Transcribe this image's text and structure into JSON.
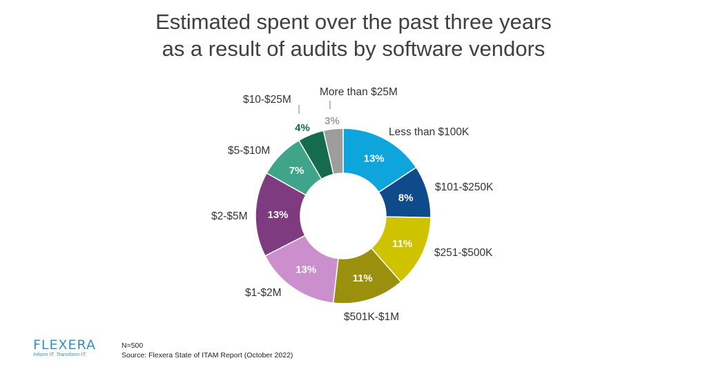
{
  "title_line1": "Estimated spent over the past three years",
  "title_line2": "as a result of audits by software vendors",
  "chart_data": {
    "type": "pie",
    "donut": true,
    "title": "Estimated spent over the past three years as a result of audits by software vendors",
    "categories": [
      "Less than $100K",
      "$101-$250K",
      "$251-$500K",
      "$501K-$1M",
      "$1-$2M",
      "$2-$5M",
      "$5-$10M",
      "$10-$25M",
      "More than $25M"
    ],
    "values": [
      13,
      8,
      11,
      11,
      13,
      13,
      7,
      4,
      3
    ],
    "value_labels": [
      "13%",
      "8%",
      "11%",
      "11%",
      "13%",
      "13%",
      "7%",
      "4%",
      "3%"
    ],
    "colors": [
      "#0ea5dd",
      "#0f4a8a",
      "#cfc300",
      "#9b8f0e",
      "#cc8fce",
      "#7f3b80",
      "#3fa58a",
      "#146b4e",
      "#9d9d9d"
    ],
    "label_colors": [
      "#ffffff",
      "#ffffff",
      "#ffffff",
      "#ffffff",
      "#ffffff",
      "#ffffff",
      "#ffffff",
      "#146b4e",
      "#9d9d9d"
    ],
    "legend": "none"
  },
  "footer": {
    "logo_text": "FLEXERA",
    "tagline": "Inform IT. Transform IT.",
    "sample": "N=500",
    "source": "Source: Flexera State of ITAM Report (October 2022)"
  }
}
